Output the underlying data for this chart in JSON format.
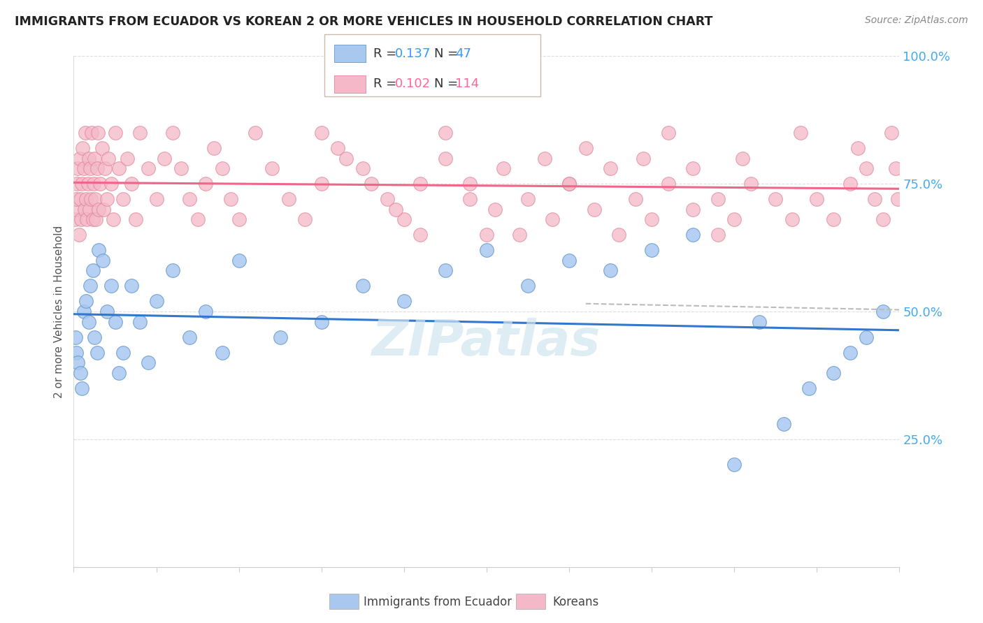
{
  "title": "IMMIGRANTS FROM ECUADOR VS KOREAN 2 OR MORE VEHICLES IN HOUSEHOLD CORRELATION CHART",
  "source": "Source: ZipAtlas.com",
  "ylabel": "2 or more Vehicles in Household",
  "legend_blue_label": "Immigrants from Ecuador",
  "legend_pink_label": "Koreans",
  "R_blue": 0.137,
  "N_blue": 47,
  "R_pink": 0.102,
  "N_pink": 114,
  "blue_color": "#A8C8F0",
  "blue_edge_color": "#6699CC",
  "pink_color": "#F5B8C8",
  "pink_edge_color": "#DD8899",
  "blue_line_color": "#3377CC",
  "pink_line_color": "#EE6688",
  "dash_color": "#BBBBBB",
  "watermark_color": "#D0E4F0",
  "ytick_color": "#44AAEE",
  "xtick_color": "#44AAEE",
  "grid_color": "#DDDDDD",
  "ylabel_color": "#555555",
  "title_color": "#222222",
  "source_color": "#888888",
  "legend_text_color": "#333333",
  "legend_val_color": "#3399FF",
  "legend_val_pink_color": "#FF6699",
  "blue_x": [
    0.2,
    0.3,
    0.5,
    0.8,
    1.0,
    1.2,
    1.5,
    1.8,
    2.0,
    2.3,
    2.5,
    2.8,
    3.0,
    3.5,
    4.0,
    4.5,
    5.0,
    5.5,
    6.0,
    7.0,
    8.0,
    9.0,
    10.0,
    12.0,
    14.0,
    16.0,
    18.0,
    20.0,
    25.0,
    30.0,
    35.0,
    40.0,
    45.0,
    50.0,
    55.0,
    60.0,
    65.0,
    70.0,
    75.0,
    80.0,
    83.0,
    86.0,
    89.0,
    92.0,
    94.0,
    96.0,
    98.0
  ],
  "blue_y": [
    45.0,
    42.0,
    40.0,
    38.0,
    35.0,
    50.0,
    52.0,
    48.0,
    55.0,
    58.0,
    45.0,
    42.0,
    62.0,
    60.0,
    50.0,
    55.0,
    48.0,
    38.0,
    42.0,
    55.0,
    48.0,
    40.0,
    52.0,
    58.0,
    45.0,
    50.0,
    42.0,
    60.0,
    45.0,
    48.0,
    55.0,
    52.0,
    58.0,
    62.0,
    55.0,
    60.0,
    58.0,
    62.0,
    65.0,
    20.0,
    48.0,
    28.0,
    35.0,
    38.0,
    42.0,
    45.0,
    50.0
  ],
  "pink_x": [
    0.1,
    0.2,
    0.3,
    0.4,
    0.5,
    0.6,
    0.7,
    0.8,
    0.9,
    1.0,
    1.1,
    1.2,
    1.3,
    1.4,
    1.5,
    1.6,
    1.7,
    1.8,
    1.9,
    2.0,
    2.1,
    2.2,
    2.3,
    2.4,
    2.5,
    2.6,
    2.7,
    2.8,
    2.9,
    3.0,
    3.2,
    3.4,
    3.6,
    3.8,
    4.0,
    4.2,
    4.5,
    4.8,
    5.0,
    5.5,
    6.0,
    6.5,
    7.0,
    7.5,
    8.0,
    9.0,
    10.0,
    11.0,
    12.0,
    13.0,
    14.0,
    15.0,
    16.0,
    17.0,
    18.0,
    19.0,
    20.0,
    22.0,
    24.0,
    26.0,
    28.0,
    30.0,
    32.0,
    35.0,
    38.0,
    40.0,
    42.0,
    45.0,
    48.0,
    50.0,
    52.0,
    55.0,
    58.0,
    60.0,
    62.0,
    65.0,
    68.0,
    70.0,
    72.0,
    75.0,
    78.0,
    80.0,
    82.0,
    85.0,
    87.0,
    88.0,
    90.0,
    92.0,
    94.0,
    95.0,
    96.0,
    97.0,
    98.0,
    99.0,
    99.5,
    99.8,
    30.0,
    33.0,
    36.0,
    39.0,
    42.0,
    45.0,
    48.0,
    51.0,
    54.0,
    57.0,
    60.0,
    63.0,
    66.0,
    69.0,
    72.0,
    75.0,
    78.0,
    81.0
  ],
  "pink_y": [
    68.0,
    70.0,
    72.0,
    75.0,
    78.0,
    65.0,
    80.0,
    72.0,
    68.0,
    75.0,
    82.0,
    78.0,
    70.0,
    85.0,
    72.0,
    68.0,
    75.0,
    80.0,
    70.0,
    78.0,
    72.0,
    85.0,
    68.0,
    75.0,
    80.0,
    72.0,
    68.0,
    78.0,
    85.0,
    70.0,
    75.0,
    82.0,
    70.0,
    78.0,
    72.0,
    80.0,
    75.0,
    68.0,
    85.0,
    78.0,
    72.0,
    80.0,
    75.0,
    68.0,
    85.0,
    78.0,
    72.0,
    80.0,
    85.0,
    78.0,
    72.0,
    68.0,
    75.0,
    82.0,
    78.0,
    72.0,
    68.0,
    85.0,
    78.0,
    72.0,
    68.0,
    75.0,
    82.0,
    78.0,
    72.0,
    68.0,
    75.0,
    85.0,
    72.0,
    65.0,
    78.0,
    72.0,
    68.0,
    75.0,
    82.0,
    78.0,
    72.0,
    68.0,
    85.0,
    78.0,
    72.0,
    68.0,
    75.0,
    72.0,
    68.0,
    85.0,
    72.0,
    68.0,
    75.0,
    82.0,
    78.0,
    72.0,
    68.0,
    85.0,
    78.0,
    72.0,
    85.0,
    80.0,
    75.0,
    70.0,
    65.0,
    80.0,
    75.0,
    70.0,
    65.0,
    80.0,
    75.0,
    70.0,
    65.0,
    80.0,
    75.0,
    70.0,
    65.0,
    80.0
  ]
}
